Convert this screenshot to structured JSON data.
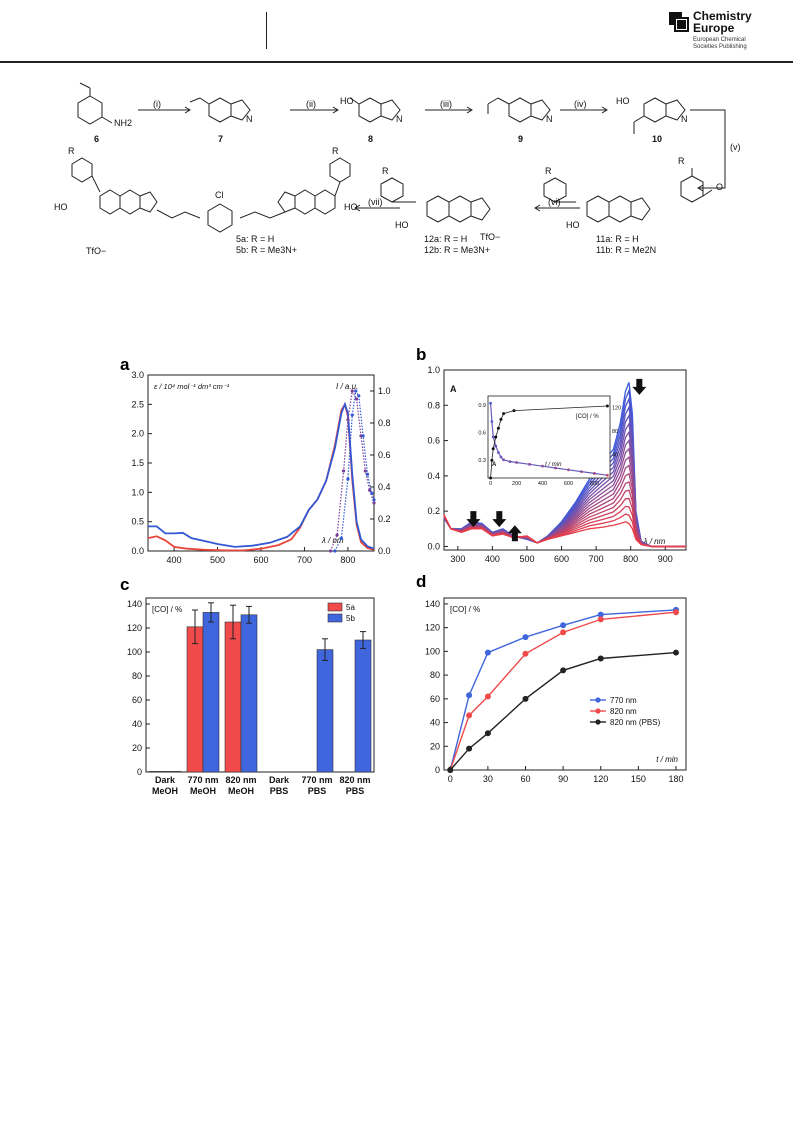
{
  "header": {
    "logo_line1": "Chemistry",
    "logo_line2": "Europe",
    "logo_line3": "European Chemical",
    "logo_line4": "Societies Publishing"
  },
  "scheme": {
    "steps": [
      "(i)",
      "(ii)",
      "(iii)",
      "(iv)",
      "(v)",
      "(vi)",
      "(vii)"
    ],
    "compounds": [
      "6",
      "7",
      "8",
      "9",
      "10",
      "11a",
      "11b",
      "12a",
      "12b",
      "5a",
      "5b"
    ],
    "labels": {
      "c11a": "11a: R = H",
      "c11b": "11b: R = Me2N",
      "c12a": "12a: R = H",
      "c12b": "12b: R = Me3N+",
      "c5a": "5a: R = H",
      "c5b": "5b: R = Me3N+",
      "tfo": "TfO−",
      "R": "R",
      "HO": "HO",
      "O": "O",
      "N": "N",
      "Cl": "Cl",
      "NH2": "NH2"
    }
  },
  "panels": {
    "a": "a",
    "b": "b",
    "c": "c",
    "d": "d"
  },
  "chart_data": [
    {
      "panel": "a",
      "type": "line",
      "ylabel_left": "ε / 10⁴ mol⁻¹ dm³ cm⁻¹",
      "ylabel_right": "I / a.u.",
      "xlabel": "λ / nm",
      "xlim": [
        340,
        860
      ],
      "ylim": [
        0,
        3.0
      ],
      "ylim_right": [
        0,
        1.1
      ],
      "x_ticks": [
        400,
        500,
        600,
        700,
        800
      ],
      "y_ticks": [
        0.0,
        0.5,
        1.0,
        1.5,
        2.0,
        2.5,
        3.0
      ],
      "y_ticks_right": [
        0.0,
        0.2,
        0.4,
        0.6,
        0.8,
        1.0
      ],
      "series": [
        {
          "color": "#e8463a",
          "x": [
            340,
            360,
            380,
            400,
            430,
            470,
            520,
            560,
            600,
            640,
            670,
            690,
            710,
            730,
            750,
            770,
            785,
            793,
            800,
            810,
            820,
            830,
            845,
            860
          ],
          "y": [
            0.22,
            0.25,
            0.18,
            0.07,
            0.04,
            0.02,
            0.01,
            0.01,
            0.04,
            0.1,
            0.2,
            0.4,
            0.7,
            0.88,
            1.2,
            1.8,
            2.4,
            2.5,
            2.3,
            1.2,
            0.45,
            0.15,
            0.05,
            0.02
          ]
        },
        {
          "color": "#3358d4",
          "x": [
            340,
            360,
            380,
            400,
            420,
            440,
            470,
            500,
            540,
            580,
            620,
            660,
            690,
            710,
            730,
            750,
            770,
            785,
            793,
            800,
            810,
            820,
            830,
            845,
            860
          ],
          "y": [
            0.42,
            0.42,
            0.3,
            0.3,
            0.31,
            0.22,
            0.17,
            0.12,
            0.07,
            0.09,
            0.14,
            0.24,
            0.42,
            0.7,
            0.88,
            1.2,
            1.75,
            2.35,
            2.5,
            2.35,
            1.3,
            0.5,
            0.2,
            0.08,
            0.04
          ]
        },
        {
          "color": "#7a3f97",
          "axis": "right",
          "x": [
            760,
            775,
            790,
            800,
            810,
            820,
            830,
            840,
            850,
            860
          ],
          "y": [
            0.0,
            0.1,
            0.5,
            0.82,
            1.0,
            0.95,
            0.72,
            0.5,
            0.38,
            0.3
          ]
        },
        {
          "color": "#3358d4",
          "axis": "right",
          "x": [
            770,
            785,
            800,
            810,
            818,
            825,
            835,
            845,
            855,
            860
          ],
          "y": [
            0.0,
            0.08,
            0.45,
            0.85,
            1.0,
            0.97,
            0.72,
            0.48,
            0.36,
            0.32
          ]
        }
      ]
    },
    {
      "panel": "b",
      "type": "line",
      "ylabel": "A",
      "xlabel": "λ / nm",
      "xlim": [
        260,
        960
      ],
      "ylim": [
        -0.02,
        1.0
      ],
      "x_ticks": [
        300,
        400,
        500,
        600,
        700,
        800,
        900
      ],
      "y_ticks": [
        0.0,
        0.2,
        0.4,
        0.6,
        0.8,
        1.0
      ],
      "series_note": "spectra over irradiation time, blue (t=0) to red (final)",
      "first": {
        "x": [
          260,
          280,
          310,
          340,
          370,
          400,
          430,
          460,
          500,
          530,
          560,
          600,
          640,
          680,
          720,
          750,
          770,
          785,
          795,
          805,
          815,
          830,
          860,
          900,
          960
        ],
        "y": [
          0.16,
          0.1,
          0.1,
          0.14,
          0.13,
          0.08,
          0.1,
          0.06,
          0.04,
          0.02,
          0.06,
          0.14,
          0.25,
          0.38,
          0.48,
          0.55,
          0.7,
          0.88,
          0.93,
          0.75,
          0.2,
          0.03,
          0.0,
          0.0,
          0.0
        ]
      },
      "last": {
        "x": [
          260,
          280,
          310,
          340,
          370,
          400,
          430,
          460,
          500,
          530,
          560,
          600,
          640,
          680,
          720,
          750,
          770,
          785,
          795,
          805,
          815,
          830,
          860,
          900,
          960
        ],
        "y": [
          0.18,
          0.1,
          0.08,
          0.1,
          0.1,
          0.06,
          0.07,
          0.05,
          0.06,
          0.02,
          0.04,
          0.06,
          0.08,
          0.1,
          0.11,
          0.12,
          0.13,
          0.14,
          0.13,
          0.1,
          0.04,
          0.01,
          0.0,
          0.0,
          0.0
        ]
      },
      "arrows": [
        {
          "x": 345,
          "dir": "down"
        },
        {
          "x": 420,
          "dir": "down"
        },
        {
          "x": 465,
          "dir": "up"
        },
        {
          "x": 825,
          "dir": "down"
        }
      ],
      "inset": {
        "xlabel": "t / min",
        "ylabel_left": "A",
        "ylabel_right": "[CO] / %",
        "x_ticks": [
          0,
          200,
          400,
          600,
          800
        ],
        "y_ticks_left": [
          0.3,
          0.6,
          0.9
        ],
        "y_ticks_right": [
          40,
          80,
          120
        ],
        "absorbance": {
          "x": [
            0,
            10,
            20,
            40,
            60,
            80,
            100,
            150,
            200,
            300,
            400,
            500,
            600,
            700,
            800,
            900
          ],
          "y": [
            0.92,
            0.72,
            0.55,
            0.45,
            0.38,
            0.33,
            0.3,
            0.28,
            0.27,
            0.25,
            0.23,
            0.21,
            0.19,
            0.17,
            0.15,
            0.13
          ]
        },
        "co": {
          "x": [
            0,
            10,
            20,
            40,
            60,
            80,
            100,
            180,
            900
          ],
          "y": [
            0,
            30,
            50,
            70,
            85,
            100,
            110,
            115,
            123
          ]
        }
      }
    },
    {
      "panel": "c",
      "type": "bar",
      "ylabel": "[CO] / %",
      "ylim": [
        0,
        145
      ],
      "y_ticks": [
        0,
        20,
        40,
        60,
        80,
        100,
        120,
        140
      ],
      "categories": [
        "Dark MeOH",
        "770 nm MeOH",
        "820 nm MeOH",
        "Dark PBS",
        "770 nm PBS",
        "820 nm PBS"
      ],
      "category_lines": [
        [
          "Dark",
          "MeOH"
        ],
        [
          "770 nm",
          "MeOH"
        ],
        [
          "820 nm",
          "MeOH"
        ],
        [
          "Dark",
          "PBS"
        ],
        [
          "770 nm",
          "PBS"
        ],
        [
          "820 nm",
          "PBS"
        ]
      ],
      "series": [
        {
          "name": "5a",
          "color": "#f04a4a",
          "values": [
            0.5,
            121,
            125,
            null,
            null,
            null
          ],
          "errors": [
            0,
            14,
            14,
            0,
            0,
            0
          ]
        },
        {
          "name": "5b",
          "color": "#3f66dc",
          "values": [
            0.5,
            133,
            131,
            null,
            102,
            110
          ],
          "errors": [
            0,
            8,
            7,
            0,
            9,
            7
          ]
        }
      ]
    },
    {
      "panel": "d",
      "type": "line",
      "ylabel": "[CO] / %",
      "xlabel": "t / min",
      "xlim": [
        -5,
        188
      ],
      "ylim": [
        0,
        145
      ],
      "x_ticks": [
        0,
        30,
        60,
        90,
        120,
        150,
        180
      ],
      "y_ticks": [
        0,
        20,
        40,
        60,
        80,
        100,
        120,
        140
      ],
      "series": [
        {
          "name": "770 nm",
          "color": "#3f66dc",
          "x": [
            0,
            15,
            30,
            60,
            90,
            120,
            180
          ],
          "y": [
            0,
            63,
            99,
            112,
            122,
            131,
            135
          ]
        },
        {
          "name": "820 nm",
          "color": "#f04a4a",
          "x": [
            0,
            15,
            30,
            60,
            90,
            120,
            180
          ],
          "y": [
            0,
            46,
            62,
            98,
            116,
            127,
            133
          ]
        },
        {
          "name": "820 nm (PBS)",
          "color": "#222222",
          "x": [
            0,
            15,
            30,
            60,
            90,
            120,
            180
          ],
          "y": [
            0,
            18,
            31,
            60,
            84,
            94,
            99
          ]
        }
      ]
    }
  ]
}
